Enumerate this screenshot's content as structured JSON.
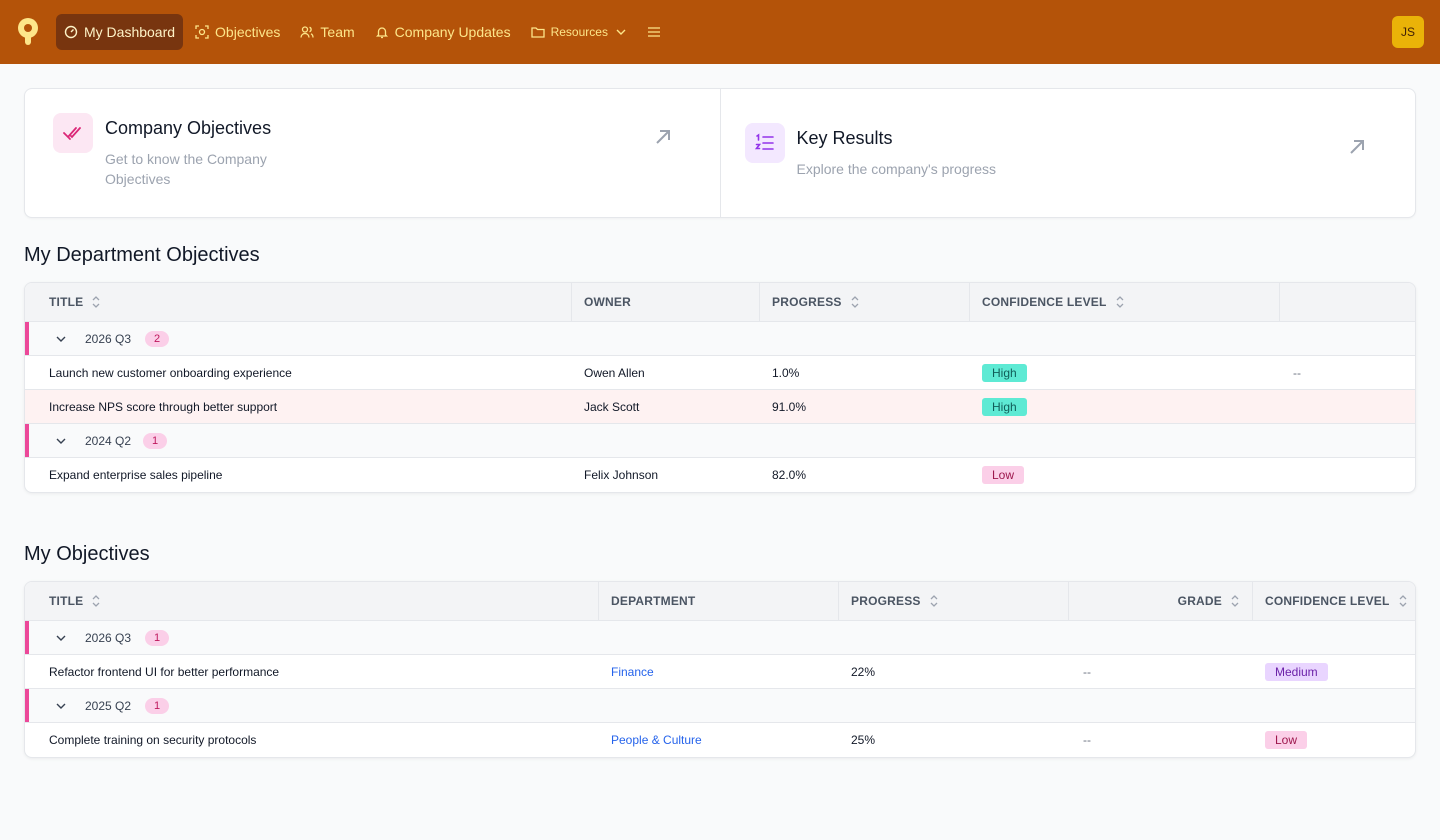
{
  "nav": {
    "items": [
      {
        "label": "My Dashboard",
        "icon": "gauge-icon",
        "active": true
      },
      {
        "label": "Objectives",
        "icon": "target-icon"
      },
      {
        "label": "Team",
        "icon": "users-icon"
      },
      {
        "label": "Company Updates",
        "icon": "bell-icon"
      },
      {
        "label": "Resources",
        "icon": "folder-icon"
      }
    ],
    "avatar": "JS",
    "colors": {
      "bar": "#b45309",
      "active": "#78350f",
      "text": "#fde68a",
      "avatar": "#eab308"
    }
  },
  "cards": [
    {
      "title": "Company Objectives",
      "desc": "Get to know the Company Objectives",
      "icon": "double-check-icon"
    },
    {
      "title": "Key Results",
      "desc": "Explore the company's progress",
      "icon": "numbered-list-icon"
    }
  ],
  "dept": {
    "title": "My Department Objectives",
    "headers": [
      "TITLE",
      "OWNER",
      "PROGRESS",
      "CONFIDENCE LEVEL",
      ""
    ],
    "groups": [
      {
        "label": "2026 Q3",
        "count": "2",
        "rows": [
          {
            "title": "Launch new customer onboarding experience",
            "owner": "Owen Allen",
            "progress": "1.0%",
            "confidence": "High",
            "extra": "--"
          },
          {
            "title": "Increase NPS score through better support",
            "owner": "Jack Scott",
            "progress": "91.0%",
            "confidence": "High",
            "extra": ""
          }
        ]
      },
      {
        "label": "2024 Q2",
        "count": "1",
        "rows": [
          {
            "title": "Expand enterprise sales pipeline",
            "owner": "Felix Johnson",
            "progress": "82.0%",
            "confidence": "Low",
            "extra": ""
          }
        ]
      }
    ]
  },
  "mine": {
    "title": "My Objectives",
    "headers": [
      "TITLE",
      "DEPARTMENT",
      "PROGRESS",
      "GRADE",
      "CONFIDENCE LEVEL"
    ],
    "groups": [
      {
        "label": "2026 Q3",
        "count": "1",
        "rows": [
          {
            "title": "Refactor frontend UI for better performance",
            "department": "Finance",
            "progress": "22%",
            "grade": "--",
            "confidence": "Medium"
          }
        ]
      },
      {
        "label": "2025 Q2",
        "count": "1",
        "rows": [
          {
            "title": "Complete training on security protocols",
            "department": "People & Culture",
            "progress": "25%",
            "grade": "--",
            "confidence": "Low"
          }
        ]
      }
    ]
  },
  "colors": {
    "accent": "#ec4899",
    "link": "#2563eb",
    "high": "#5eead4",
    "low": "#fbcfe8",
    "medium": "#e9d5ff"
  }
}
